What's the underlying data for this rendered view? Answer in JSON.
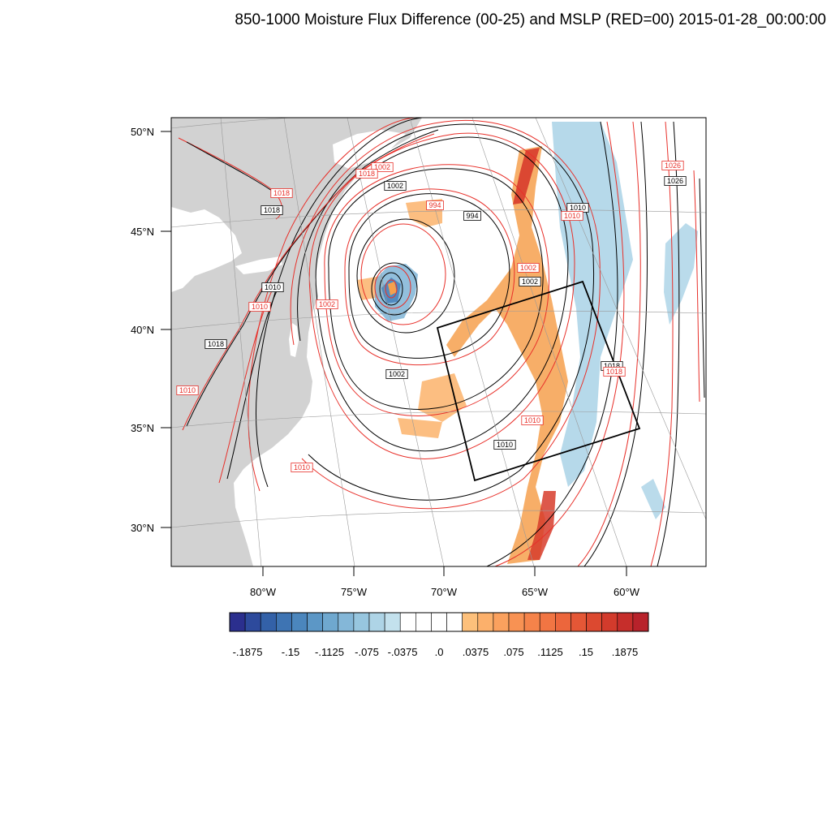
{
  "title": "850-1000 Moisture Flux Difference (00-25) and MSLP (RED=00) 2015-01-28_00:00:00",
  "colors": {
    "land": "#d2d2d2",
    "ocean": "#ffffff",
    "contour_black": "#000000",
    "contour_red": "#e8302a",
    "grid": "#999999"
  },
  "lat_labels": [
    "50°N",
    "45°N",
    "40°N",
    "35°N",
    "30°N"
  ],
  "lon_labels": [
    "80°W",
    "75°W",
    "70°W",
    "65°W",
    "60°W"
  ],
  "contour_labels": [
    {
      "text": "1018",
      "color": "red"
    },
    {
      "text": "1018",
      "color": "black"
    },
    {
      "text": "1010",
      "color": "black"
    },
    {
      "text": "1010",
      "color": "red"
    },
    {
      "text": "1002",
      "color": "red"
    },
    {
      "text": "1010",
      "color": "red"
    },
    {
      "text": "1002",
      "color": "black"
    },
    {
      "text": "1002",
      "color": "red"
    },
    {
      "text": "994",
      "color": "red"
    },
    {
      "text": "994",
      "color": "black"
    },
    {
      "text": "1002",
      "color": "red"
    },
    {
      "text": "1002",
      "color": "black"
    },
    {
      "text": "1010",
      "color": "black"
    },
    {
      "text": "1010",
      "color": "red"
    },
    {
      "text": "1026",
      "color": "red"
    },
    {
      "text": "1026",
      "color": "black"
    },
    {
      "text": "1018",
      "color": "black"
    },
    {
      "text": "1018",
      "color": "red"
    },
    {
      "text": "1002",
      "color": "black"
    },
    {
      "text": "1010",
      "color": "red"
    },
    {
      "text": "1010",
      "color": "black"
    },
    {
      "text": "1010",
      "color": "red"
    },
    {
      "text": "1018",
      "color": "black"
    },
    {
      "text": "1018",
      "color": "red"
    }
  ],
  "colorbar": {
    "colors": [
      "#2b2f8e",
      "#2d4a9c",
      "#3361a8",
      "#3e74b3",
      "#4b86bd",
      "#5c97c6",
      "#6fa8cf",
      "#84b7d8",
      "#97c6df",
      "#aed4e6",
      "#c3e1ed",
      "#ffffff",
      "#ffffff",
      "#ffffff",
      "#ffffff",
      "#fdc07b",
      "#fcb06b",
      "#fba15e",
      "#f89253",
      "#f5834a",
      "#f17543",
      "#ec663c",
      "#e55736",
      "#dc4930",
      "#d33b2c",
      "#c62e2b",
      "#b8222b"
    ],
    "labels": [
      "-.1875",
      "-.15",
      "-.1125",
      "-.075",
      "-.0375",
      ".0",
      ".0375",
      ".075",
      ".1125",
      ".15",
      ".1875"
    ]
  }
}
